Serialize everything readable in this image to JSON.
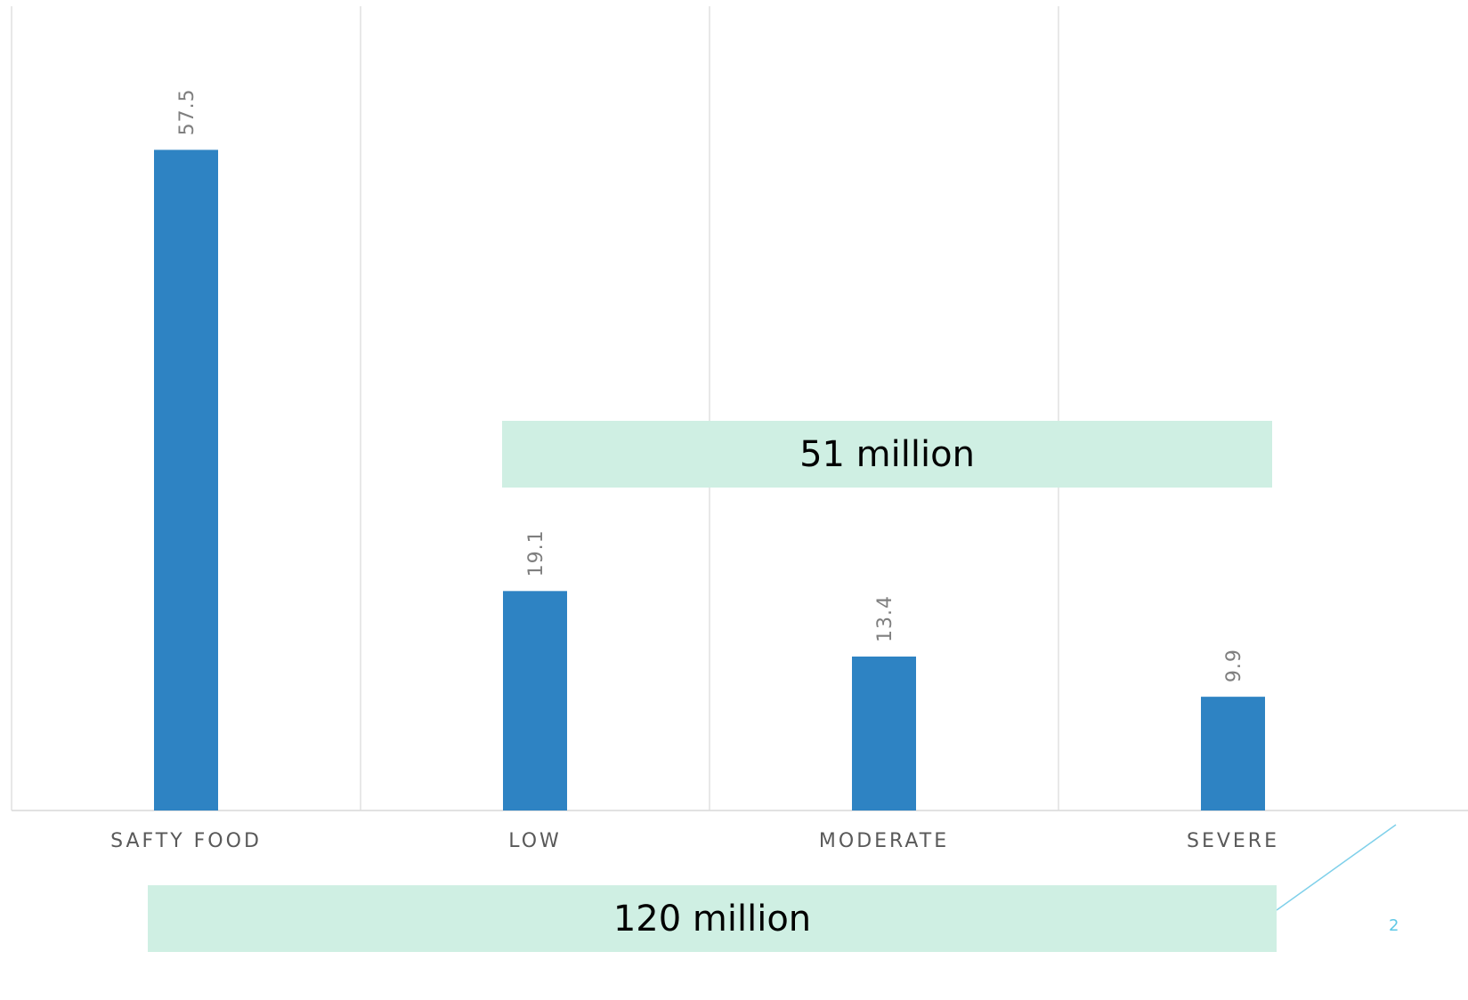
{
  "chart_data": {
    "type": "bar",
    "categories": [
      "SAFTY FOOD",
      "LOW",
      "MODERATE",
      "SEVERE"
    ],
    "values": [
      57.5,
      19.1,
      13.4,
      9.9
    ],
    "value_labels": [
      "57.5",
      "19.1",
      "13.4",
      "9.9"
    ],
    "title": "",
    "xlabel": "",
    "ylabel": "",
    "ylim": [
      0,
      70
    ],
    "grid": "vertical category separators",
    "legend": "none",
    "bar_color": "#2E83C3"
  },
  "callouts": {
    "low_to_severe": "51 million",
    "all": "120 million",
    "fill_color": "#CFEFE3"
  },
  "accent": {
    "connector_color": "#7fd0ea"
  },
  "page_number": "2"
}
